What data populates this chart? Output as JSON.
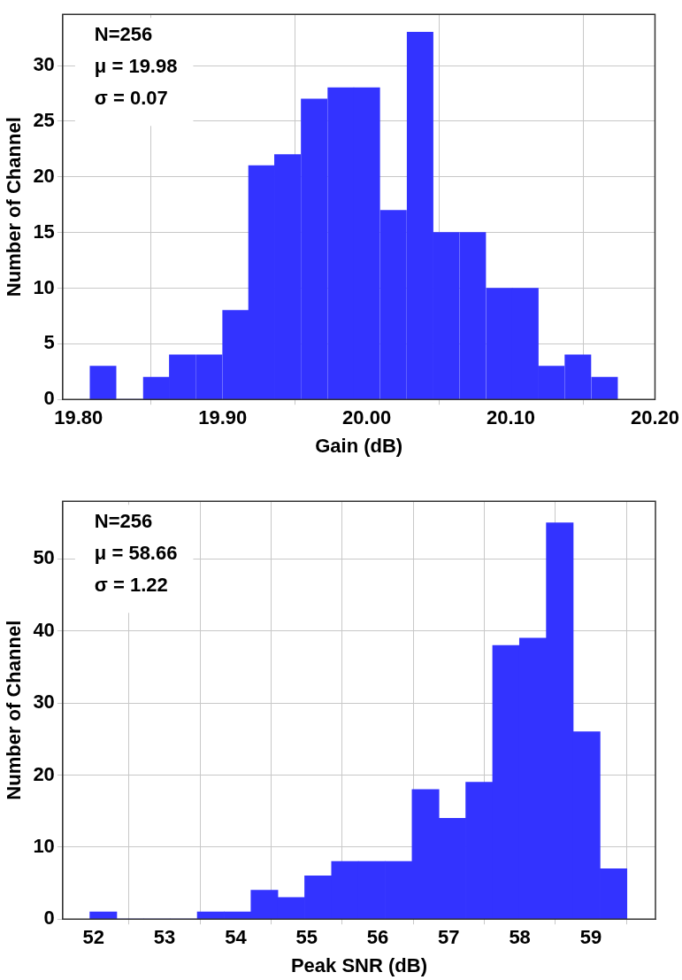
{
  "chart_data": [
    {
      "type": "histogram",
      "xlabel": "Gain (dB)",
      "ylabel": "Number of Channel",
      "color": "#3333ff",
      "bins": [
        19.808,
        19.826,
        19.845,
        19.863,
        19.881,
        19.9,
        19.918,
        19.936,
        19.954,
        19.973,
        19.991,
        20.009,
        20.028,
        20.046,
        20.064,
        20.083,
        20.101,
        20.119,
        20.137,
        20.156,
        20.174
      ],
      "values": [
        3,
        0,
        2,
        4,
        4,
        8,
        21,
        22,
        27,
        28,
        28,
        17,
        33,
        15,
        15,
        10,
        10,
        3,
        4,
        2
      ],
      "xlim": [
        19.789,
        20.2
      ],
      "xticks": [
        {
          "value": 19.8,
          "label": "19.80"
        },
        {
          "value": 19.9,
          "label": "19.90"
        },
        {
          "value": 20.0,
          "label": "20.00"
        },
        {
          "value": 20.1,
          "label": "20.10"
        },
        {
          "value": 20.2,
          "label": "20.20"
        }
      ],
      "ylim": [
        0,
        34.6
      ],
      "yticks": [
        0,
        5,
        10,
        15,
        20,
        25,
        30
      ],
      "grid": true,
      "legend": false,
      "annotations": [
        "N=256",
        "μ = 19.98",
        "σ = 0.07"
      ]
    },
    {
      "type": "histogram",
      "xlabel": "Peak SNR (dB)",
      "ylabel": "Number of Channel",
      "color": "#3333ff",
      "bins": [
        51.948,
        52.326,
        52.704,
        53.082,
        53.46,
        53.838,
        54.216,
        54.594,
        54.972,
        55.35,
        55.728,
        56.106,
        56.484,
        56.862,
        57.24,
        57.618,
        57.996,
        58.374,
        58.752,
        59.13,
        59.508
      ],
      "values": [
        1,
        0,
        0,
        0,
        1,
        1,
        4,
        3,
        6,
        8,
        8,
        8,
        18,
        14,
        19,
        38,
        39,
        55,
        26,
        7
      ],
      "xlim": [
        51.565,
        59.91
      ],
      "xticks": [
        52,
        53,
        54,
        55,
        56,
        57,
        58,
        59
      ],
      "ylim": [
        0,
        58
      ],
      "yticks": [
        0,
        10,
        20,
        30,
        40,
        50
      ],
      "grid": true,
      "legend": false,
      "annotations": [
        "N=256",
        "μ = 58.66",
        "σ = 1.22"
      ]
    }
  ]
}
